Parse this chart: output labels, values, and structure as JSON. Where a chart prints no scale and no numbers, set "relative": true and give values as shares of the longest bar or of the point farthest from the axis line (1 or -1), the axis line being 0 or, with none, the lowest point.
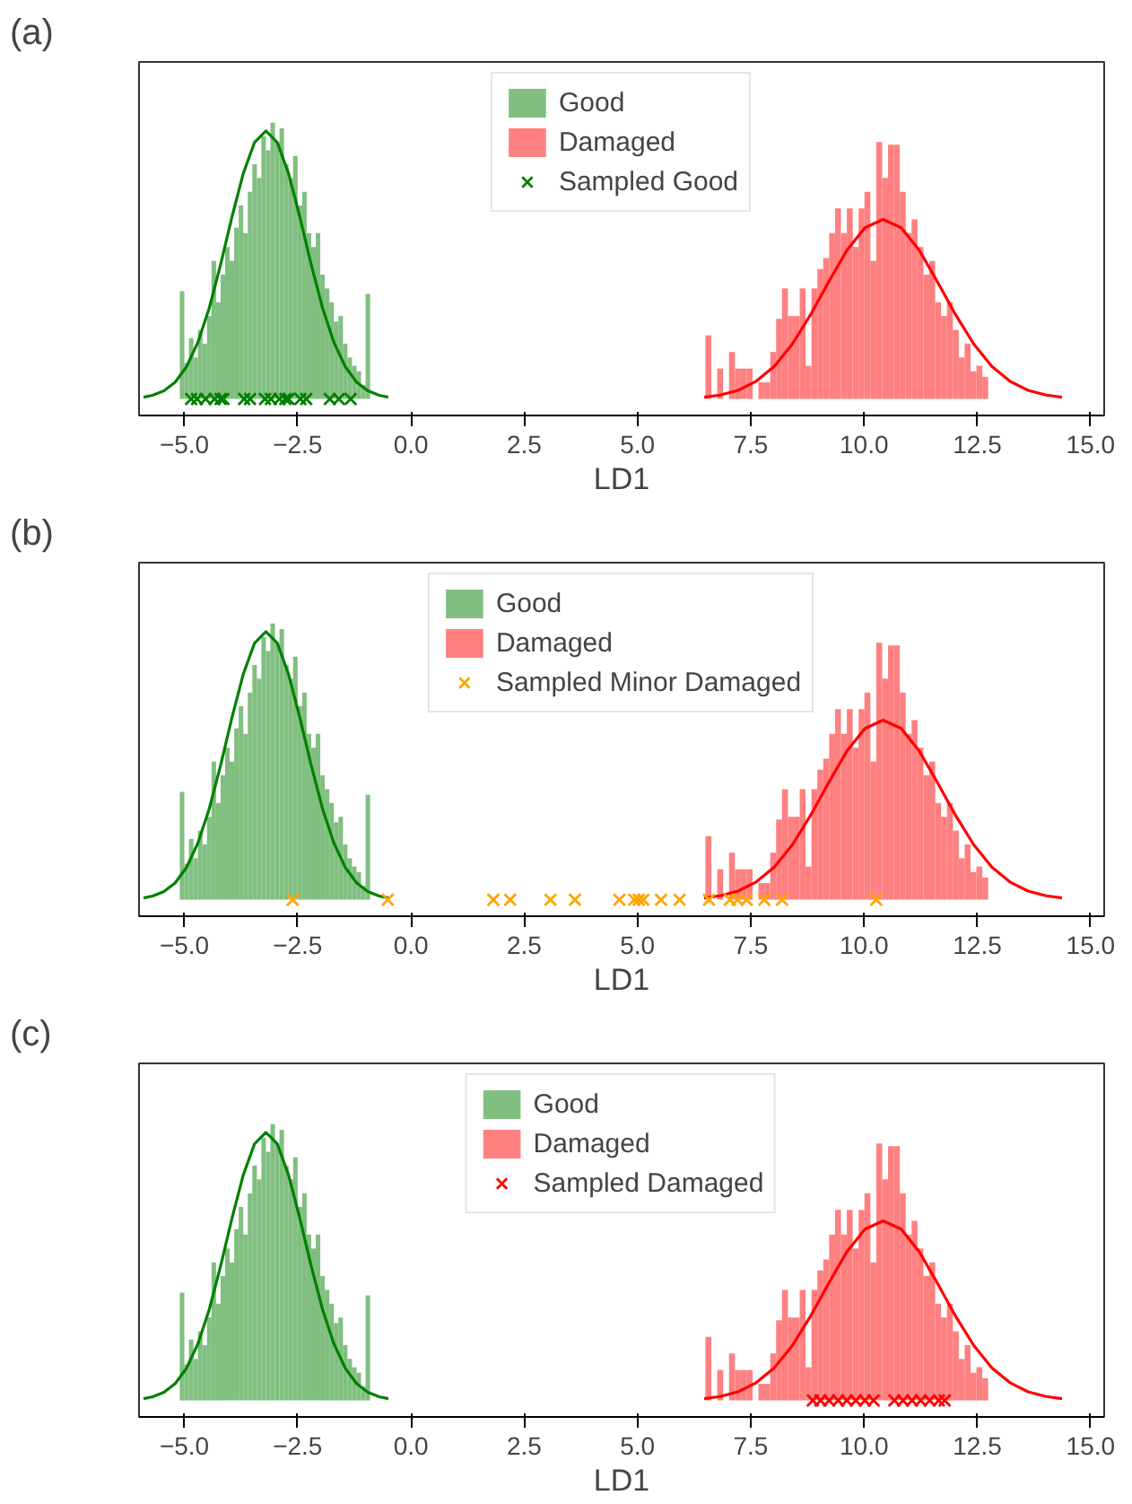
{
  "chart_data": [
    {
      "type": "histogram",
      "title": "(a)",
      "xlabel": "LD1",
      "relative": true,
      "tick_labels": "x",
      "legend": "top",
      "xlim": [
        -6.0,
        15.3
      ],
      "xticks": [
        {
          "value": -5,
          "label": "−5.0"
        },
        {
          "value": -2.5,
          "label": "−2.5"
        },
        {
          "value": 0,
          "label": "0.0"
        },
        {
          "value": 2.5,
          "label": "2.5"
        },
        {
          "value": 5,
          "label": "5.0"
        },
        {
          "value": 7.5,
          "label": "7.5"
        },
        {
          "value": 10,
          "label": "10.0"
        },
        {
          "value": 12.5,
          "label": "12.5"
        },
        {
          "value": 15,
          "label": "15.0"
        }
      ],
      "series": [
        {
          "type": "histogram",
          "name": "Good",
          "color": "#80bf80",
          "bins": [
            -5.1,
            -5.0,
            -4.9,
            -4.8,
            -4.7,
            -4.6,
            -4.5,
            -4.4,
            -4.3,
            -4.2,
            -4.1,
            -4.0,
            -3.9,
            -3.8,
            -3.7,
            -3.6,
            -3.5,
            -3.4,
            -3.3,
            -3.2,
            -3.1,
            -3.0,
            -2.9,
            -2.8,
            -2.7,
            -2.6,
            -2.5,
            -2.4,
            -2.3,
            -2.2,
            -2.1,
            -2.0,
            -1.9,
            -1.8,
            -1.7,
            -1.6,
            -1.5,
            -1.4,
            -1.3,
            -1.2,
            -1.1,
            -1.0,
            -0.9
          ],
          "values": [
            0.39,
            0.13,
            0.22,
            0.15,
            0.25,
            0.2,
            0.3,
            0.5,
            0.35,
            0.45,
            0.55,
            0.5,
            0.62,
            0.7,
            0.6,
            0.75,
            0.85,
            0.8,
            0.95,
            0.9,
            1.0,
            0.93,
            0.98,
            0.85,
            0.8,
            0.88,
            0.7,
            0.75,
            0.6,
            0.55,
            0.6,
            0.45,
            0.4,
            0.35,
            0.28,
            0.3,
            0.2,
            0.15,
            0.12,
            0.1,
            0.05,
            0.38
          ]
        },
        {
          "type": "histogram",
          "name": "Damaged",
          "color": "#ff8080",
          "bins": [
            6.5,
            6.63,
            6.76,
            6.89,
            7.02,
            7.15,
            7.28,
            7.41,
            7.54,
            7.67,
            7.8,
            7.93,
            8.06,
            8.19,
            8.32,
            8.45,
            8.58,
            8.71,
            8.84,
            8.97,
            9.1,
            9.23,
            9.36,
            9.49,
            9.62,
            9.75,
            9.88,
            10.01,
            10.14,
            10.27,
            10.4,
            10.53,
            10.66,
            10.79,
            10.92,
            11.05,
            11.18,
            11.31,
            11.44,
            11.57,
            11.7,
            11.83,
            11.96,
            12.09,
            12.22,
            12.35,
            12.48,
            12.61,
            12.74
          ],
          "values": [
            0.23,
            0,
            0.11,
            0,
            0.17,
            0.11,
            0.11,
            0.11,
            0,
            0.06,
            0.06,
            0.17,
            0.29,
            0.4,
            0.3,
            0.3,
            0.4,
            0.12,
            0.4,
            0.47,
            0.51,
            0.6,
            0.69,
            0.6,
            0.69,
            0.55,
            0.69,
            0.75,
            0.5,
            0.93,
            0.8,
            0.92,
            0.92,
            0.75,
            0.6,
            0.65,
            0.55,
            0.45,
            0.5,
            0.35,
            0.3,
            0.35,
            0.25,
            0.15,
            0.2,
            0.1,
            0.12,
            0.08
          ]
        },
        {
          "type": "line",
          "color": "#008000",
          "x": [
            -5.9,
            -5.7,
            -5.45,
            -5.2,
            -4.95,
            -4.7,
            -4.45,
            -4.2,
            -3.95,
            -3.7,
            -3.45,
            -3.2,
            -2.95,
            -2.7,
            -2.45,
            -2.2,
            -1.95,
            -1.7,
            -1.45,
            -1.2,
            -0.95,
            -0.7,
            -0.5
          ],
          "values": [
            0.006,
            0.013,
            0.029,
            0.061,
            0.117,
            0.205,
            0.329,
            0.486,
            0.658,
            0.816,
            0.929,
            0.97,
            0.929,
            0.816,
            0.658,
            0.486,
            0.329,
            0.205,
            0.117,
            0.061,
            0.029,
            0.013,
            0.006
          ]
        },
        {
          "type": "line",
          "color": "#ff0000",
          "x": [
            6.47,
            6.82,
            7.22,
            7.62,
            8.02,
            8.42,
            8.82,
            9.22,
            9.62,
            10.02,
            10.42,
            10.82,
            11.22,
            11.62,
            12.02,
            12.42,
            12.82,
            13.22,
            13.62,
            14.02,
            14.37
          ],
          "values": [
            0.006,
            0.014,
            0.031,
            0.064,
            0.118,
            0.199,
            0.305,
            0.424,
            0.538,
            0.62,
            0.65,
            0.62,
            0.538,
            0.424,
            0.305,
            0.199,
            0.118,
            0.064,
            0.031,
            0.014,
            0.006
          ]
        },
        {
          "type": "scatter",
          "name": "Sampled Good",
          "color": "#008000",
          "marker": "cross",
          "x": [
            -4.85,
            -4.72,
            -4.53,
            -4.33,
            -4.2,
            -4.14,
            -3.68,
            -3.55,
            -3.22,
            -3.09,
            -2.9,
            -2.77,
            -2.7,
            -2.44,
            -2.31,
            -1.79,
            -1.59,
            -1.33
          ],
          "values": [
            0,
            0,
            0,
            0,
            0,
            0,
            0,
            0,
            0,
            0,
            0,
            0,
            0,
            0,
            0,
            0,
            0,
            0
          ]
        }
      ]
    },
    {
      "type": "histogram",
      "title": "(b)",
      "xlabel": "LD1",
      "relative": true,
      "tick_labels": "x",
      "legend": "top",
      "xlim": [
        -6.0,
        15.3
      ],
      "xticks": [
        {
          "value": -5,
          "label": "−5.0"
        },
        {
          "value": -2.5,
          "label": "−2.5"
        },
        {
          "value": 0,
          "label": "0.0"
        },
        {
          "value": 2.5,
          "label": "2.5"
        },
        {
          "value": 5,
          "label": "5.0"
        },
        {
          "value": 7.5,
          "label": "7.5"
        },
        {
          "value": 10,
          "label": "10.0"
        },
        {
          "value": 12.5,
          "label": "12.5"
        },
        {
          "value": 15,
          "label": "15.0"
        }
      ],
      "series": [
        {
          "type": "histogram",
          "name": "Good",
          "color": "#80bf80",
          "bins": [
            -5.1,
            -5.0,
            -4.9,
            -4.8,
            -4.7,
            -4.6,
            -4.5,
            -4.4,
            -4.3,
            -4.2,
            -4.1,
            -4.0,
            -3.9,
            -3.8,
            -3.7,
            -3.6,
            -3.5,
            -3.4,
            -3.3,
            -3.2,
            -3.1,
            -3.0,
            -2.9,
            -2.8,
            -2.7,
            -2.6,
            -2.5,
            -2.4,
            -2.3,
            -2.2,
            -2.1,
            -2.0,
            -1.9,
            -1.8,
            -1.7,
            -1.6,
            -1.5,
            -1.4,
            -1.3,
            -1.2,
            -1.1,
            -1.0,
            -0.9
          ],
          "values": [
            0.39,
            0.13,
            0.22,
            0.15,
            0.25,
            0.2,
            0.3,
            0.5,
            0.35,
            0.45,
            0.55,
            0.5,
            0.62,
            0.7,
            0.6,
            0.75,
            0.85,
            0.8,
            0.95,
            0.9,
            1.0,
            0.93,
            0.98,
            0.85,
            0.8,
            0.88,
            0.7,
            0.75,
            0.6,
            0.55,
            0.6,
            0.45,
            0.4,
            0.35,
            0.28,
            0.3,
            0.2,
            0.15,
            0.12,
            0.1,
            0.05,
            0.38
          ]
        },
        {
          "type": "histogram",
          "name": "Damaged",
          "color": "#ff8080",
          "bins": [
            6.5,
            6.63,
            6.76,
            6.89,
            7.02,
            7.15,
            7.28,
            7.41,
            7.54,
            7.67,
            7.8,
            7.93,
            8.06,
            8.19,
            8.32,
            8.45,
            8.58,
            8.71,
            8.84,
            8.97,
            9.1,
            9.23,
            9.36,
            9.49,
            9.62,
            9.75,
            9.88,
            10.01,
            10.14,
            10.27,
            10.4,
            10.53,
            10.66,
            10.79,
            10.92,
            11.05,
            11.18,
            11.31,
            11.44,
            11.57,
            11.7,
            11.83,
            11.96,
            12.09,
            12.22,
            12.35,
            12.48,
            12.61,
            12.74
          ],
          "values": [
            0.23,
            0,
            0.11,
            0,
            0.17,
            0.11,
            0.11,
            0.11,
            0,
            0.06,
            0.06,
            0.17,
            0.29,
            0.4,
            0.3,
            0.3,
            0.4,
            0.12,
            0.4,
            0.47,
            0.51,
            0.6,
            0.69,
            0.6,
            0.69,
            0.55,
            0.69,
            0.75,
            0.5,
            0.93,
            0.8,
            0.92,
            0.92,
            0.75,
            0.6,
            0.65,
            0.55,
            0.45,
            0.5,
            0.35,
            0.3,
            0.35,
            0.25,
            0.15,
            0.2,
            0.1,
            0.12,
            0.08
          ]
        },
        {
          "type": "line",
          "color": "#008000",
          "x": [
            -5.9,
            -5.7,
            -5.45,
            -5.2,
            -4.95,
            -4.7,
            -4.45,
            -4.2,
            -3.95,
            -3.7,
            -3.45,
            -3.2,
            -2.95,
            -2.7,
            -2.45,
            -2.2,
            -1.95,
            -1.7,
            -1.45,
            -1.2,
            -0.95,
            -0.7,
            -0.5
          ],
          "values": [
            0.006,
            0.013,
            0.029,
            0.061,
            0.117,
            0.205,
            0.329,
            0.486,
            0.658,
            0.816,
            0.929,
            0.97,
            0.929,
            0.816,
            0.658,
            0.486,
            0.329,
            0.205,
            0.117,
            0.061,
            0.029,
            0.013,
            0.006
          ]
        },
        {
          "type": "line",
          "color": "#ff0000",
          "x": [
            6.47,
            6.82,
            7.22,
            7.62,
            8.02,
            8.42,
            8.82,
            9.22,
            9.62,
            10.02,
            10.42,
            10.82,
            11.22,
            11.62,
            12.02,
            12.42,
            12.82,
            13.22,
            13.62,
            14.02,
            14.37
          ],
          "values": [
            0.006,
            0.014,
            0.031,
            0.064,
            0.118,
            0.199,
            0.305,
            0.424,
            0.538,
            0.62,
            0.65,
            0.62,
            0.538,
            0.424,
            0.305,
            0.199,
            0.118,
            0.064,
            0.031,
            0.014,
            0.006
          ]
        },
        {
          "type": "scatter",
          "name": "Sampled Minor Damaged",
          "color": "#ffa500",
          "marker": "cross",
          "x": [
            -2.61,
            -0.51,
            1.82,
            2.19,
            3.08,
            3.62,
            4.6,
            4.93,
            5.03,
            5.13,
            5.52,
            5.93,
            6.58,
            7.04,
            7.21,
            7.41,
            7.8,
            8.19,
            10.27
          ],
          "values": [
            0,
            0,
            0,
            0,
            0,
            0,
            0,
            0,
            0,
            0,
            0,
            0,
            0,
            0,
            0,
            0,
            0,
            0,
            0
          ]
        }
      ]
    },
    {
      "type": "histogram",
      "title": "(c)",
      "xlabel": "LD1",
      "relative": true,
      "tick_labels": "x",
      "legend": "top",
      "xlim": [
        -6.0,
        15.3
      ],
      "xticks": [
        {
          "value": -5,
          "label": "−5.0"
        },
        {
          "value": -2.5,
          "label": "−2.5"
        },
        {
          "value": 0,
          "label": "0.0"
        },
        {
          "value": 2.5,
          "label": "2.5"
        },
        {
          "value": 5,
          "label": "5.0"
        },
        {
          "value": 7.5,
          "label": "7.5"
        },
        {
          "value": 10,
          "label": "10.0"
        },
        {
          "value": 12.5,
          "label": "12.5"
        },
        {
          "value": 15,
          "label": "15.0"
        }
      ],
      "series": [
        {
          "type": "histogram",
          "name": "Good",
          "color": "#80bf80",
          "bins": [
            -5.1,
            -5.0,
            -4.9,
            -4.8,
            -4.7,
            -4.6,
            -4.5,
            -4.4,
            -4.3,
            -4.2,
            -4.1,
            -4.0,
            -3.9,
            -3.8,
            -3.7,
            -3.6,
            -3.5,
            -3.4,
            -3.3,
            -3.2,
            -3.1,
            -3.0,
            -2.9,
            -2.8,
            -2.7,
            -2.6,
            -2.5,
            -2.4,
            -2.3,
            -2.2,
            -2.1,
            -2.0,
            -1.9,
            -1.8,
            -1.7,
            -1.6,
            -1.5,
            -1.4,
            -1.3,
            -1.2,
            -1.1,
            -1.0,
            -0.9
          ],
          "values": [
            0.39,
            0.13,
            0.22,
            0.15,
            0.25,
            0.2,
            0.3,
            0.5,
            0.35,
            0.45,
            0.55,
            0.5,
            0.62,
            0.7,
            0.6,
            0.75,
            0.85,
            0.8,
            0.95,
            0.9,
            1.0,
            0.93,
            0.98,
            0.85,
            0.8,
            0.88,
            0.7,
            0.75,
            0.6,
            0.55,
            0.6,
            0.45,
            0.4,
            0.35,
            0.28,
            0.3,
            0.2,
            0.15,
            0.12,
            0.1,
            0.05,
            0.38
          ]
        },
        {
          "type": "histogram",
          "name": "Damaged",
          "color": "#ff8080",
          "bins": [
            6.5,
            6.63,
            6.76,
            6.89,
            7.02,
            7.15,
            7.28,
            7.41,
            7.54,
            7.67,
            7.8,
            7.93,
            8.06,
            8.19,
            8.32,
            8.45,
            8.58,
            8.71,
            8.84,
            8.97,
            9.1,
            9.23,
            9.36,
            9.49,
            9.62,
            9.75,
            9.88,
            10.01,
            10.14,
            10.27,
            10.4,
            10.53,
            10.66,
            10.79,
            10.92,
            11.05,
            11.18,
            11.31,
            11.44,
            11.57,
            11.7,
            11.83,
            11.96,
            12.09,
            12.22,
            12.35,
            12.48,
            12.61,
            12.74
          ],
          "values": [
            0.23,
            0,
            0.11,
            0,
            0.17,
            0.11,
            0.11,
            0.11,
            0,
            0.06,
            0.06,
            0.17,
            0.29,
            0.4,
            0.3,
            0.3,
            0.4,
            0.12,
            0.4,
            0.47,
            0.51,
            0.6,
            0.69,
            0.6,
            0.69,
            0.55,
            0.69,
            0.75,
            0.5,
            0.93,
            0.8,
            0.92,
            0.92,
            0.75,
            0.6,
            0.65,
            0.55,
            0.45,
            0.5,
            0.35,
            0.3,
            0.35,
            0.25,
            0.15,
            0.2,
            0.1,
            0.12,
            0.08
          ]
        },
        {
          "type": "line",
          "color": "#008000",
          "x": [
            -5.9,
            -5.7,
            -5.45,
            -5.2,
            -4.95,
            -4.7,
            -4.45,
            -4.2,
            -3.95,
            -3.7,
            -3.45,
            -3.2,
            -2.95,
            -2.7,
            -2.45,
            -2.2,
            -1.95,
            -1.7,
            -1.45,
            -1.2,
            -0.95,
            -0.7,
            -0.5
          ],
          "values": [
            0.006,
            0.013,
            0.029,
            0.061,
            0.117,
            0.205,
            0.329,
            0.486,
            0.658,
            0.816,
            0.929,
            0.97,
            0.929,
            0.816,
            0.658,
            0.486,
            0.329,
            0.205,
            0.117,
            0.061,
            0.029,
            0.013,
            0.006
          ]
        },
        {
          "type": "line",
          "color": "#ff0000",
          "x": [
            6.47,
            6.82,
            7.22,
            7.62,
            8.02,
            8.42,
            8.82,
            9.22,
            9.62,
            10.02,
            10.42,
            10.82,
            11.22,
            11.62,
            12.02,
            12.42,
            12.82,
            13.22,
            13.62,
            14.02,
            14.37
          ],
          "values": [
            0.006,
            0.014,
            0.031,
            0.064,
            0.118,
            0.199,
            0.305,
            0.424,
            0.538,
            0.62,
            0.65,
            0.62,
            0.538,
            0.424,
            0.305,
            0.199,
            0.118,
            0.064,
            0.031,
            0.014,
            0.006
          ]
        },
        {
          "type": "scatter",
          "name": "Sampled Damaged",
          "color": "#ff0000",
          "marker": "cross",
          "x": [
            8.87,
            9.04,
            9.23,
            9.43,
            9.62,
            9.82,
            10.02,
            10.21,
            10.67,
            10.86,
            11.06,
            11.25,
            11.45,
            11.65,
            11.78
          ],
          "values": [
            0,
            0,
            0,
            0,
            0,
            0,
            0,
            0,
            0,
            0,
            0,
            0,
            0,
            0,
            0
          ]
        }
      ]
    }
  ]
}
